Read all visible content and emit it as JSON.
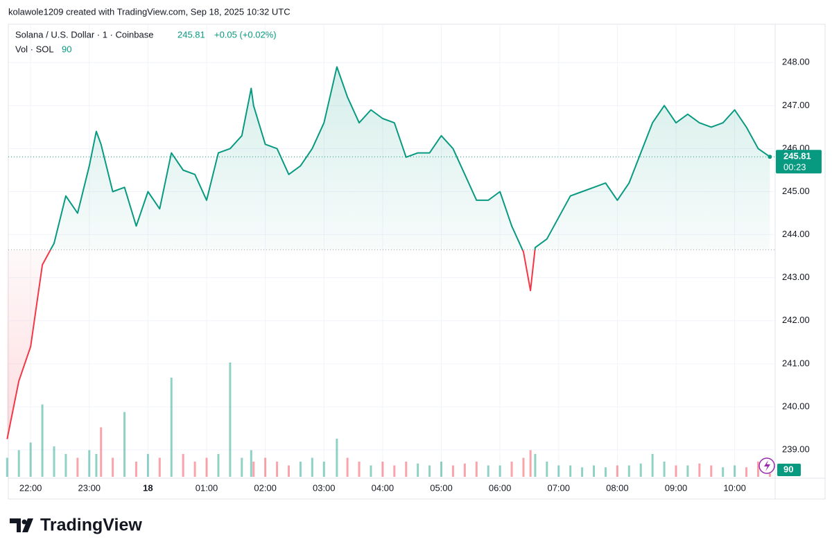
{
  "chart_data": {
    "type": "line",
    "credit": "kolawole1209 created with TradingView.com, Sep 18, 2025 10:32 UTC",
    "title": "Solana / U.S. Dollar · 1 · Coinbase",
    "change": "+0.05 (+0.02%)",
    "countdown": "00:23",
    "brand": "TradingView",
    "up_color": "#089981",
    "down_color": "#f23645",
    "baseline": 243.65,
    "x": [
      21.6,
      21.8,
      22.0,
      22.2,
      22.4,
      22.6,
      22.8,
      23.0,
      23.12,
      23.2,
      23.4,
      23.6,
      23.8,
      24.0,
      24.2,
      24.4,
      24.6,
      24.8,
      25.0,
      25.2,
      25.4,
      25.6,
      25.76,
      25.8,
      26.0,
      26.2,
      26.4,
      26.6,
      26.8,
      27.0,
      27.22,
      27.4,
      27.6,
      27.8,
      28.0,
      28.2,
      28.4,
      28.6,
      28.8,
      29.0,
      29.2,
      29.4,
      29.6,
      29.8,
      30.0,
      30.2,
      30.4,
      30.52,
      30.6,
      30.8,
      31.0,
      31.2,
      31.4,
      31.6,
      31.8,
      32.0,
      32.2,
      32.4,
      32.6,
      32.8,
      33.0,
      33.2,
      33.4,
      33.6,
      33.8,
      34.0,
      34.2,
      34.4,
      34.6
    ],
    "values": [
      239.25,
      240.6,
      241.4,
      243.3,
      243.8,
      244.9,
      244.5,
      245.6,
      246.4,
      246.1,
      245.0,
      245.1,
      244.2,
      245.0,
      244.6,
      245.9,
      245.5,
      245.4,
      244.8,
      245.9,
      246.0,
      246.3,
      247.4,
      247.0,
      246.1,
      246.0,
      245.4,
      245.6,
      246.0,
      246.6,
      247.9,
      247.2,
      246.6,
      246.9,
      246.7,
      246.6,
      245.8,
      245.9,
      245.9,
      246.3,
      246.0,
      245.4,
      244.8,
      244.8,
      245.0,
      244.2,
      243.6,
      242.7,
      243.7,
      243.9,
      244.4,
      244.9,
      245.0,
      245.1,
      245.2,
      244.8,
      245.2,
      245.9,
      246.6,
      247.0,
      246.6,
      246.8,
      246.6,
      246.5,
      246.6,
      246.9,
      246.5,
      246.0,
      245.81
    ],
    "volume": {
      "name": "Vol · SOL",
      "ylim": [
        0,
        3000
      ],
      "values": [
        500,
        700,
        900,
        1900,
        800,
        600,
        500,
        700,
        600,
        1300,
        500,
        1700,
        400,
        600,
        500,
        2600,
        600,
        400,
        500,
        600,
        3000,
        500,
        700,
        400,
        500,
        400,
        300,
        400,
        500,
        400,
        1000,
        500,
        400,
        300,
        400,
        300,
        400,
        350,
        300,
        400,
        300,
        350,
        400,
        300,
        300,
        400,
        500,
        700,
        600,
        400,
        300,
        300,
        250,
        300,
        250,
        300,
        300,
        350,
        600,
        400,
        300,
        300,
        350,
        300,
        250,
        300,
        250,
        400,
        90
      ]
    },
    "xlim": [
      21.62,
      34.69
    ],
    "xticks": [
      {
        "value": 22,
        "label": "22:00"
      },
      {
        "value": 23,
        "label": "23:00"
      },
      {
        "value": 24,
        "label": "18"
      },
      {
        "value": 25,
        "label": "01:00"
      },
      {
        "value": 26,
        "label": "02:00"
      },
      {
        "value": 27,
        "label": "03:00"
      },
      {
        "value": 28,
        "label": "04:00"
      },
      {
        "value": 29,
        "label": "05:00"
      },
      {
        "value": 30,
        "label": "06:00"
      },
      {
        "value": 31,
        "label": "07:00"
      },
      {
        "value": 32,
        "label": "08:00"
      },
      {
        "value": 33,
        "label": "09:00"
      },
      {
        "value": 34,
        "label": "10:00"
      }
    ],
    "ylim": [
      238.34,
      248.89
    ],
    "yticks": [
      {
        "value": 239,
        "label": "239.00"
      },
      {
        "value": 240,
        "label": "240.00"
      },
      {
        "value": 241,
        "label": "241.00"
      },
      {
        "value": 242,
        "label": "242.00"
      },
      {
        "value": 243,
        "label": "243.00"
      },
      {
        "value": 244,
        "label": "244.00"
      },
      {
        "value": 245,
        "label": "245.00"
      },
      {
        "value": 246,
        "label": "246.00"
      },
      {
        "value": 247,
        "label": "247.00"
      },
      {
        "value": 248,
        "label": "248.00"
      }
    ],
    "grid": true
  }
}
